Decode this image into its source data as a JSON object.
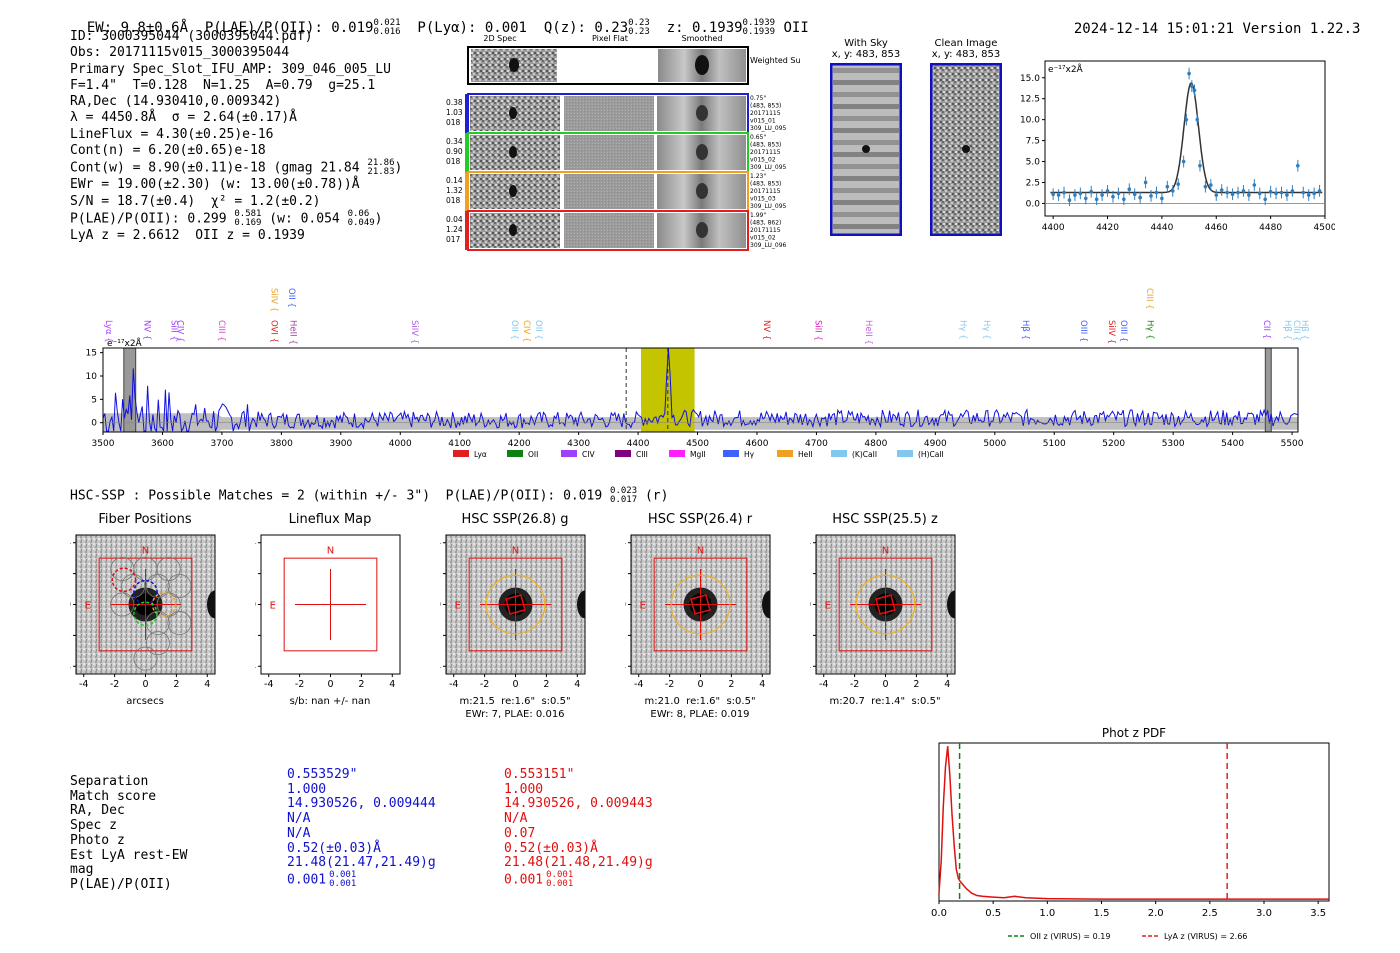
{
  "header": {
    "ew_label": "EW: 9.8±0.6Å",
    "plae_label": "P(LAE)/P(OII): 0.019",
    "plae_sup": "0.021",
    "plae_sub": "0.016",
    "plya_label": "P(Lyα): 0.001",
    "qz_label": "Q(z): 0.23",
    "qz_sup": "0.23",
    "qz_sub": "0.23",
    "z_label": "z: 0.1939",
    "z_sup": "0.1939",
    "z_sub": "0.1939",
    "z_line": "OII",
    "datetime": "2024-12-14 15:01:21",
    "version": "Version 1.22.3"
  },
  "info": {
    "id": "ID: 3000395044 (3000395044.pdf)",
    "obs": "Obs: 20171115v015_3000395044",
    "primary": "Primary Spec_Slot_IFU_AMP: 309_046_005_LU",
    "fit": "F=1.4\"  T=0.128  N=1.25  A=0.79  g=25.1",
    "radec": "RA,Dec (14.930410,0.009342)",
    "lambda": "λ = 4450.8Å  σ = 2.64(±0.17)Å",
    "lineflux": "LineFlux = 4.30(±0.25)e-16",
    "contn": "Cont(n) = 6.20(±0.65)e-18",
    "contw": "Cont(w) = 8.90(±0.11)e-18 (gmag 21.84",
    "contw_sup": "21.86",
    "contw_sub": "21.83",
    "ewr": "EWr = 19.00(±2.30) (w: 13.00(±0.78))Å",
    "sn": "S/N = 18.7(±0.4)  χ² = 1.2(±0.2)",
    "plae": "P(LAE)/P(OII): 0.299",
    "plae_sup": "0.581",
    "plae_sub": "0.169",
    "plae_w": "(w: 0.054",
    "plae_w_sup": "0.06",
    "plae_w_sub": "0.049",
    "lyaz": "LyA z = 2.6612  OII z = 0.1939"
  },
  "cutouts": {
    "col_labels": [
      "2D Spec",
      "Pixel Flat",
      "Smoothed"
    ],
    "weighted_label": "Weighted Sum",
    "rows": [
      {
        "stats": [
          "0.38",
          "1.03",
          "018"
        ],
        "side": [
          "0.75\"",
          "(483, 853)",
          "20171115",
          "v015_01",
          "309_LU_095"
        ],
        "color": "#1f1fd0"
      },
      {
        "stats": [
          "0.34",
          "0.90",
          "018"
        ],
        "side": [
          "0.65\"",
          "(483, 853)",
          "20171115",
          "v015_02",
          "309_LU_095"
        ],
        "color": "#22cc22"
      },
      {
        "stats": [
          "0.14",
          "1.32",
          "018"
        ],
        "side": [
          "1.23\"",
          "(483, 853)",
          "20171115",
          "v015_03",
          "309_LU_095"
        ],
        "color": "#f0a020"
      },
      {
        "stats": [
          "0.04",
          "1.24",
          "017"
        ],
        "side": [
          "1.99\"",
          "(483, 862)",
          "20171115",
          "v015_02",
          "309_LU_096"
        ],
        "color": "#e02020"
      }
    ]
  },
  "sky": {
    "with_sky_title": "With Sky",
    "with_sky_xy": "x, y: 483, 853",
    "clean_title": "Clean Image",
    "clean_xy": "x, y: 483, 853"
  },
  "zoom_chart": {
    "ylabel": "e⁻¹⁷x2Å",
    "x_ticks": [
      "4400",
      "4420",
      "4440",
      "4460",
      "4480",
      "4500"
    ],
    "y_ticks": [
      "0.0",
      "2.5",
      "5.0",
      "7.5",
      "10.0",
      "12.5",
      "15.0"
    ]
  },
  "chart_data": [
    {
      "type": "scatter",
      "title": "Emission line zoom",
      "xlabel": "",
      "ylabel": "e⁻¹⁷x2Å",
      "xlim": [
        4397,
        4500
      ],
      "ylim": [
        -1.5,
        17
      ],
      "x": [
        4400,
        4402,
        4404,
        4406,
        4408,
        4410,
        4412,
        4414,
        4416,
        4418,
        4420,
        4422,
        4424,
        4426,
        4428,
        4430,
        4432,
        4434,
        4436,
        4438,
        4440,
        4442,
        4444,
        4446,
        4448,
        4449,
        4450,
        4451,
        4452,
        4453,
        4454,
        4456,
        4458,
        4460,
        4462,
        4464,
        4466,
        4468,
        4470,
        4472,
        4474,
        4476,
        4478,
        4480,
        4482,
        4484,
        4486,
        4488,
        4490,
        4492,
        4494,
        4496,
        4498
      ],
      "y": [
        1.1,
        1.0,
        1.3,
        0.4,
        1.0,
        1.2,
        0.6,
        1.4,
        0.5,
        1.0,
        1.5,
        0.8,
        1.2,
        0.5,
        1.7,
        1.1,
        0.7,
        2.5,
        0.9,
        1.3,
        0.6,
        2.0,
        1.5,
        2.3,
        5.0,
        10.0,
        15.5,
        14.0,
        13.5,
        10.0,
        4.5,
        2.0,
        2.2,
        1.0,
        1.6,
        1.3,
        1.1,
        1.3,
        1.5,
        1.0,
        2.2,
        1.2,
        0.5,
        1.4,
        1.2,
        1.3,
        1.0,
        1.5,
        4.5,
        1.3,
        1.0,
        1.2,
        1.5
      ],
      "fit": {
        "type": "gaussian",
        "center": 4450.8,
        "sigma": 2.64,
        "amplitude": 13.1,
        "continuum": 1.3
      }
    },
    {
      "type": "line",
      "title": "Full spectrum",
      "ylabel": "e⁻¹⁷x2Å",
      "xlim": [
        3500,
        5510
      ],
      "ylim": [
        -2,
        16
      ],
      "x_ticks": [
        3500,
        3600,
        3700,
        3800,
        3900,
        4000,
        4100,
        4200,
        4300,
        4400,
        4500,
        4600,
        4700,
        4800,
        4900,
        5000,
        5100,
        5200,
        5300,
        5400,
        5500
      ],
      "y_ticks": [
        0,
        5,
        10,
        15
      ],
      "highlight": [
        4405,
        4495
      ],
      "dashed_lines": [
        4380,
        4450
      ],
      "masked_bands": [
        [
          3535,
          3555
        ],
        [
          5455,
          5465
        ]
      ],
      "lines": [
        {
          "label": "Lyα",
          "x": 3500,
          "color": "#a040ff"
        },
        {
          "label": "NV",
          "x": 3565,
          "color": "#a040ff"
        },
        {
          "label": "SiII",
          "x": 3610,
          "color": "#a040ff"
        },
        {
          "label": "CIV",
          "x": 3620,
          "color": "#a040ff"
        },
        {
          "label": "CIII",
          "x": 3690,
          "color": "#d040d0"
        },
        {
          "label": "SiIV",
          "x": 3778,
          "color": "#f0a020"
        },
        {
          "label": "OVI",
          "x": 3778,
          "color": "#e02020"
        },
        {
          "label": "OII",
          "x": 3808,
          "color": "#4060ff"
        },
        {
          "label": "HeII",
          "x": 3810,
          "color": "#a040a0"
        },
        {
          "label": "SiIV",
          "x": 4015,
          "color": "#b060e0"
        },
        {
          "label": "OII",
          "x": 4183,
          "color": "#80c8f0"
        },
        {
          "label": "CIV",
          "x": 4203,
          "color": "#f0a020"
        },
        {
          "label": "OII",
          "x": 4223,
          "color": "#80c8f0"
        },
        {
          "label": "NV",
          "x": 4607,
          "color": "#e02020"
        },
        {
          "label": "SiII",
          "x": 4693,
          "color": "#e020c0"
        },
        {
          "label": "HeII",
          "x": 4778,
          "color": "#c060e0"
        },
        {
          "label": "Hγ",
          "x": 4937,
          "color": "#80c8f0"
        },
        {
          "label": "Hγ",
          "x": 4977,
          "color": "#80c8f0"
        },
        {
          "label": "Hβ",
          "x": 5042,
          "color": "#4060ff"
        },
        {
          "label": "OIII",
          "x": 5140,
          "color": "#4060ff"
        },
        {
          "label": "SiIV",
          "x": 5187,
          "color": "#e02020"
        },
        {
          "label": "OIII",
          "x": 5207,
          "color": "#4060ff"
        },
        {
          "label": "CIII",
          "x": 5251,
          "color": "#f0a020"
        },
        {
          "label": "Hγ",
          "x": 5252,
          "color": "#108010"
        },
        {
          "label": "CII",
          "x": 5448,
          "color": "#a040ff"
        },
        {
          "label": "Hβ",
          "x": 5483,
          "color": "#80c8f0"
        },
        {
          "label": "CIII",
          "x": 5498,
          "color": "#80c8f0"
        },
        {
          "label": "Hβ",
          "x": 5515,
          "color": "#80c8f0"
        }
      ],
      "legend": [
        {
          "label": "Lyα",
          "color": "#e02020"
        },
        {
          "label": "OII",
          "color": "#108010"
        },
        {
          "label": "CIV",
          "color": "#a040ff"
        },
        {
          "label": "CIII",
          "color": "#800080"
        },
        {
          "label": "MgII",
          "color": "#ff20ff"
        },
        {
          "label": "Hγ",
          "color": "#4060ff"
        },
        {
          "label": "HeII",
          "color": "#f0a020"
        },
        {
          "label": "(K)CaII",
          "color": "#80c8f0"
        },
        {
          "label": "(H)CaII",
          "color": "#80c8f0"
        }
      ]
    },
    {
      "type": "line",
      "title": "Phot z PDF",
      "xlim": [
        0,
        3.6
      ],
      "ylim": [
        0,
        1.0
      ],
      "x_ticks": [
        "0.0",
        "0.5",
        "1.0",
        "1.5",
        "2.0",
        "2.5",
        "3.0",
        "3.5"
      ],
      "x": [
        0.0,
        0.02,
        0.04,
        0.06,
        0.08,
        0.1,
        0.12,
        0.14,
        0.16,
        0.18,
        0.2,
        0.25,
        0.3,
        0.35,
        0.4,
        0.5,
        0.6,
        0.7,
        0.8,
        1.0,
        1.5,
        2.0,
        2.5,
        3.0,
        3.6
      ],
      "y": [
        0.05,
        0.25,
        0.6,
        0.85,
        0.98,
        0.8,
        0.55,
        0.35,
        0.2,
        0.14,
        0.12,
        0.08,
        0.05,
        0.035,
        0.03,
        0.025,
        0.02,
        0.03,
        0.02,
        0.015,
        0.012,
        0.012,
        0.012,
        0.012,
        0.012
      ],
      "vlines": [
        {
          "x": 0.19,
          "color": "#108010",
          "label": "OII z (VIRUS) = 0.19"
        },
        {
          "x": 2.66,
          "color": "#e02020",
          "label": "LyA z (VIRUS) = 2.66"
        }
      ]
    }
  ],
  "full_chart_label": "e⁻¹⁷x2Å",
  "hsc": {
    "summary": "HSC-SSP : Possible Matches = 2 (within +/- 3\")  P(LAE)/P(OII): 0.019",
    "summary_sup": "0.023",
    "summary_sub": "0.017",
    "summary_tail": "(r)"
  },
  "thumbs": [
    {
      "title": "Fiber Positions",
      "xlabel": "arcsecs",
      "caption1": "",
      "caption2": ""
    },
    {
      "title": "Lineflux Map",
      "xlabel": "s/b: nan +/- nan",
      "caption1": "",
      "caption2": ""
    },
    {
      "title": "HSC SSP(26.8) g",
      "xlabel": "m:21.5  re:1.6\"  s:0.5\"",
      "caption1": "EWr: 7, PLAE: 0.016",
      "caption2": ""
    },
    {
      "title": "HSC SSP(26.4) r",
      "xlabel": "m:21.0  re:1.6\"  s:0.5\"",
      "caption1": "EWr: 8, PLAE: 0.019",
      "caption2": ""
    },
    {
      "title": "HSC SSP(25.5) z",
      "xlabel": "m:20.7  re:1.4\"  s:0.5\"",
      "caption1": "",
      "caption2": ""
    }
  ],
  "thumb_axis": {
    "ticks": [
      "-4",
      "-2",
      "0",
      "2",
      "4"
    ],
    "n_label": "N",
    "e_label": "E"
  },
  "matches": {
    "labels": [
      "Separation",
      "Match score",
      "RA, Dec",
      "Spec z",
      "Photo z",
      "Est LyA rest-EW",
      "mag",
      "P(LAE)/P(OII)"
    ],
    "col1": {
      "color": "#1010d0",
      "values": [
        "0.553529\"",
        "1.000",
        "14.930526, 0.009444",
        "N/A",
        "N/A",
        "0.52(±0.03)Å",
        "21.48(21.47,21.49)g",
        "0.001"
      ],
      "plae_sup": "0.001",
      "plae_sub": "0.001"
    },
    "col2": {
      "color": "#e01010",
      "values": [
        "0.553151\"",
        "1.000",
        "14.930526, 0.009443",
        "N/A",
        "0.07",
        "0.52(±0.03)Å",
        "21.48(21.48,21.49)g",
        "0.001"
      ],
      "plae_sup": "0.001",
      "plae_sub": "0.001"
    }
  },
  "photz": {
    "title": "Phot z PDF",
    "legend1": "OII z (VIRUS) = 0.19",
    "legend2": "LyA z (VIRUS) = 2.66"
  }
}
